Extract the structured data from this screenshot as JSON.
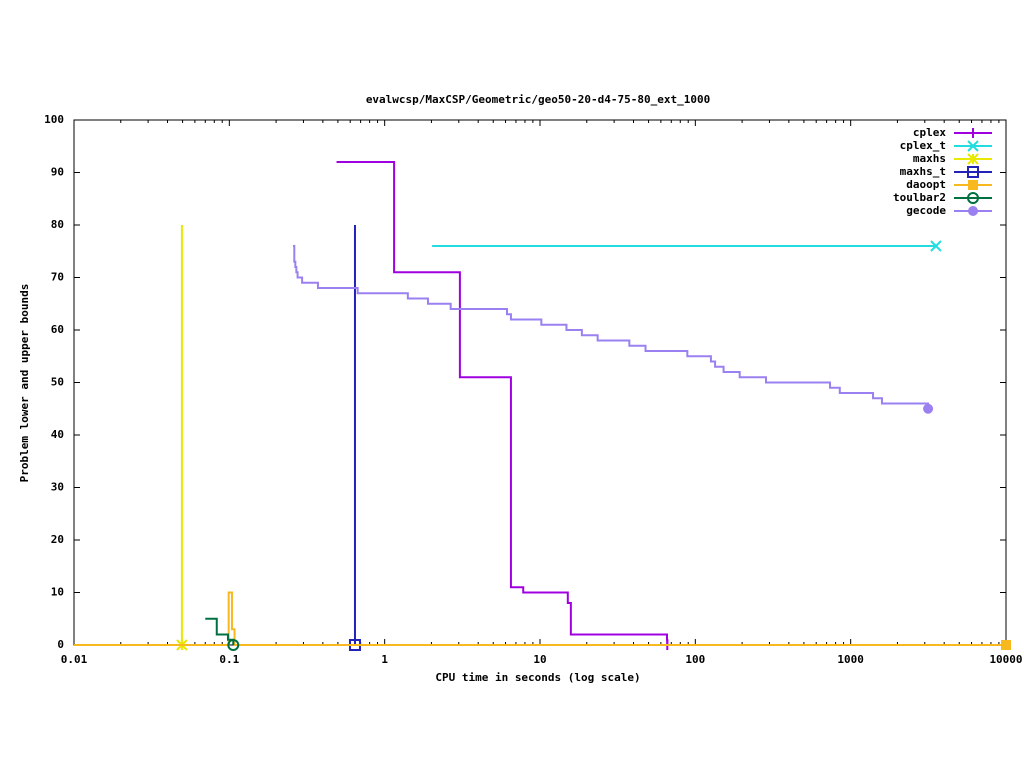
{
  "chart_data": {
    "type": "step",
    "log_x": true,
    "title": "evalwcsp/MaxCSP/Geometric/geo50-20-d4-75-80_ext_1000",
    "x_label": "CPU time in seconds (log scale)",
    "y_label": "Problem lower and upper bounds",
    "xlim": [
      0.01,
      10000
    ],
    "xticks": [
      0.01,
      0.1,
      1,
      10,
      100,
      1000,
      10000
    ],
    "ylim": [
      0,
      100
    ],
    "yticks": [
      0,
      10,
      20,
      30,
      40,
      50,
      60,
      70,
      80,
      90,
      100
    ],
    "legend": "top-right",
    "series": [
      {
        "name": "cplex",
        "color": "#a000e0",
        "marker": "plus",
        "x": [
          0.49,
          1.15,
          3.05,
          6.5,
          7.8,
          15.1,
          15.8,
          65.7,
          66
        ],
        "values": [
          92,
          71,
          51,
          11,
          10,
          8,
          2,
          1,
          0
        ]
      },
      {
        "name": "cplex_t",
        "color": "#22dde0",
        "marker": "cross",
        "x": [
          2.02,
          3540
        ],
        "values": [
          76,
          76
        ]
      },
      {
        "name": "maxhs",
        "color": "#e8e800",
        "marker": "star",
        "x": [
          0.0495,
          0.0495
        ],
        "values": [
          80,
          0
        ]
      },
      {
        "name": "maxhs_t",
        "color": "#2222b8",
        "marker": "square",
        "x": [
          0.644,
          0.644
        ],
        "values": [
          80,
          0
        ]
      },
      {
        "name": "daoopt",
        "color": "#f8b820",
        "marker": "filled-square",
        "x": [
          0.01,
          0.099,
          0.1,
          0.104,
          0.108,
          720,
          10000
        ],
        "values": [
          0,
          10,
          10,
          3,
          0,
          0,
          0
        ]
      },
      {
        "name": "toulbar2",
        "color": "#007040",
        "marker": "circle",
        "x": [
          0.07,
          0.083,
          0.098,
          0.106
        ],
        "values": [
          5,
          2,
          1,
          0
        ]
      },
      {
        "name": "gecode",
        "color": "#9a80f0",
        "marker": "filled-circle",
        "x": [
          0.257,
          0.262,
          0.266,
          0.27,
          0.275,
          0.294,
          0.372,
          0.67,
          1.41,
          1.9,
          2.66,
          6.13,
          6.5,
          10.2,
          14.8,
          18.6,
          23.5,
          37.6,
          47.8,
          88.8,
          126,
          134,
          152,
          193,
          285,
          736,
          851,
          1393,
          1590,
          3150
        ],
        "values": [
          76,
          73,
          72,
          71,
          70,
          69,
          68,
          67,
          66,
          65,
          64,
          63,
          62,
          61,
          60,
          59,
          58,
          57,
          56,
          55,
          54,
          53,
          52,
          51,
          50,
          49,
          48,
          47,
          46,
          45
        ]
      }
    ]
  }
}
